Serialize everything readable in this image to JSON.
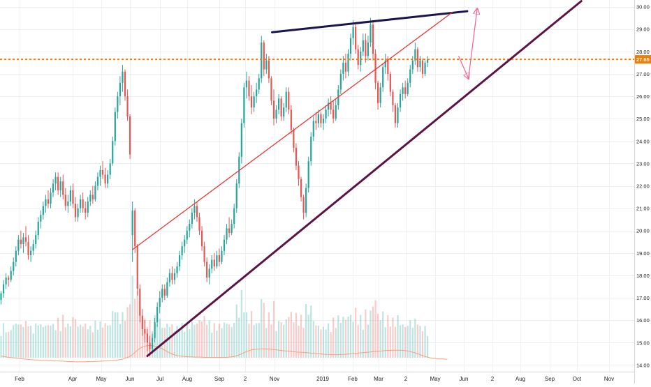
{
  "chart_data": {
    "type": "candlestick",
    "price_axis": {
      "ticks": [
        14,
        15,
        16,
        17,
        18,
        19,
        20,
        21,
        22,
        23,
        24,
        25,
        26,
        27,
        28,
        29,
        30
      ],
      "ylim": [
        13.7,
        30.3
      ],
      "grid": true
    },
    "time_axis": {
      "labels": [
        "Feb",
        "Apr",
        "May",
        "Jun",
        "Jul",
        "Aug",
        "Sep",
        "2",
        "Nov",
        "2019",
        "Feb",
        "Mar",
        "2",
        "May",
        "Jun",
        "2",
        "Aug",
        "Sep",
        "Oct",
        "Nov"
      ],
      "grid": true
    },
    "current_price": {
      "value": 27.65,
      "label": "27.65",
      "color": "#f57c00"
    },
    "colors": {
      "up": "#26a69a",
      "down": "#ef5350",
      "volume_ma": "#f5a27a"
    },
    "candles": [
      [
        16.9,
        17.3,
        16.7,
        17.2
      ],
      [
        17.2,
        17.8,
        17.0,
        17.6
      ],
      [
        17.6,
        18.1,
        17.4,
        17.9
      ],
      [
        17.9,
        18.0,
        17.5,
        17.8
      ],
      [
        17.8,
        18.4,
        17.7,
        18.2
      ],
      [
        18.2,
        18.8,
        18.0,
        18.6
      ],
      [
        18.6,
        19.3,
        18.4,
        19.1
      ],
      [
        19.1,
        19.8,
        18.9,
        19.6
      ],
      [
        19.6,
        20.0,
        19.2,
        19.4
      ],
      [
        19.4,
        19.9,
        19.0,
        19.7
      ],
      [
        19.7,
        20.2,
        19.3,
        19.5
      ],
      [
        19.5,
        19.8,
        18.7,
        18.9
      ],
      [
        18.9,
        19.3,
        18.6,
        19.1
      ],
      [
        19.1,
        19.6,
        18.9,
        19.4
      ],
      [
        19.4,
        20.0,
        19.2,
        19.8
      ],
      [
        19.8,
        20.6,
        19.6,
        20.4
      ],
      [
        20.4,
        20.9,
        20.1,
        20.7
      ],
      [
        20.7,
        21.3,
        20.5,
        21.1
      ],
      [
        21.1,
        21.6,
        20.8,
        21.4
      ],
      [
        21.4,
        21.8,
        21.0,
        21.2
      ],
      [
        21.2,
        21.9,
        21.0,
        21.7
      ],
      [
        21.7,
        22.3,
        21.5,
        22.1
      ],
      [
        22.1,
        22.6,
        21.8,
        22.4
      ],
      [
        22.4,
        22.6,
        21.6,
        21.8
      ],
      [
        21.8,
        22.4,
        21.5,
        22.2
      ],
      [
        22.2,
        22.5,
        21.4,
        21.6
      ],
      [
        21.6,
        21.9,
        20.9,
        21.1
      ],
      [
        21.1,
        21.6,
        20.8,
        21.3
      ],
      [
        21.3,
        22.0,
        21.1,
        21.8
      ],
      [
        21.8,
        22.1,
        21.0,
        21.2
      ],
      [
        21.2,
        21.5,
        20.4,
        20.6
      ],
      [
        20.6,
        21.2,
        20.4,
        21.0
      ],
      [
        21.0,
        21.6,
        20.8,
        21.4
      ],
      [
        21.4,
        21.7,
        20.8,
        21.0
      ],
      [
        21.0,
        21.3,
        20.5,
        20.8
      ],
      [
        20.8,
        21.5,
        20.6,
        21.3
      ],
      [
        21.3,
        21.8,
        21.1,
        21.6
      ],
      [
        21.6,
        22.0,
        21.2,
        21.4
      ],
      [
        21.4,
        22.2,
        21.3,
        22.0
      ],
      [
        22.0,
        22.6,
        21.8,
        22.4
      ],
      [
        22.4,
        22.9,
        22.0,
        22.7
      ],
      [
        22.7,
        23.1,
        22.3,
        22.5
      ],
      [
        22.5,
        22.8,
        21.9,
        22.1
      ],
      [
        22.1,
        22.7,
        21.9,
        22.5
      ],
      [
        22.5,
        23.2,
        22.3,
        23.0
      ],
      [
        23.0,
        24.2,
        22.9,
        24.0
      ],
      [
        24.0,
        25.5,
        23.8,
        25.3
      ],
      [
        25.3,
        26.2,
        25.0,
        26.0
      ],
      [
        26.0,
        26.9,
        25.6,
        26.6
      ],
      [
        26.6,
        27.4,
        26.2,
        27.1
      ],
      [
        27.1,
        27.2,
        25.8,
        26.0
      ],
      [
        26.0,
        26.3,
        24.9,
        25.1
      ],
      [
        25.1,
        25.2,
        23.2,
        23.4
      ],
      [
        19.8,
        21.3,
        18.6,
        20.9
      ],
      [
        20.9,
        21.0,
        19.0,
        19.3
      ],
      [
        19.3,
        19.4,
        17.1,
        17.4
      ],
      [
        17.4,
        17.6,
        15.9,
        16.2
      ],
      [
        16.2,
        16.5,
        15.3,
        15.6
      ],
      [
        15.6,
        16.0,
        15.0,
        15.4
      ],
      [
        15.4,
        15.6,
        14.6,
        15.0
      ],
      [
        15.0,
        15.3,
        14.4,
        14.7
      ],
      [
        14.7,
        15.4,
        14.5,
        15.2
      ],
      [
        15.2,
        16.1,
        15.0,
        15.9
      ],
      [
        15.9,
        16.8,
        15.7,
        16.6
      ],
      [
        16.6,
        17.3,
        16.3,
        17.0
      ],
      [
        17.0,
        17.6,
        16.8,
        17.4
      ],
      [
        17.4,
        17.6,
        16.9,
        17.1
      ],
      [
        17.1,
        17.9,
        17.0,
        17.7
      ],
      [
        17.7,
        18.3,
        17.5,
        18.1
      ],
      [
        18.1,
        18.4,
        17.6,
        17.8
      ],
      [
        17.8,
        18.3,
        17.6,
        18.1
      ],
      [
        18.1,
        18.6,
        17.9,
        18.4
      ],
      [
        18.4,
        19.1,
        18.2,
        18.9
      ],
      [
        18.9,
        19.5,
        18.7,
        19.3
      ],
      [
        19.3,
        19.8,
        19.0,
        19.6
      ],
      [
        19.6,
        20.2,
        19.4,
        20.0
      ],
      [
        20.0,
        20.5,
        19.7,
        20.3
      ],
      [
        20.3,
        21.0,
        20.1,
        20.8
      ],
      [
        20.8,
        21.4,
        20.5,
        21.1
      ],
      [
        21.1,
        21.3,
        20.4,
        20.6
      ],
      [
        20.6,
        20.8,
        19.8,
        20.0
      ],
      [
        20.0,
        20.2,
        19.1,
        19.3
      ],
      [
        19.3,
        19.5,
        18.4,
        18.6
      ],
      [
        18.6,
        18.8,
        17.7,
        17.9
      ],
      [
        17.9,
        18.5,
        17.6,
        18.3
      ],
      [
        18.3,
        18.9,
        18.1,
        18.7
      ],
      [
        18.7,
        19.0,
        18.2,
        18.4
      ],
      [
        18.4,
        19.1,
        18.3,
        18.9
      ],
      [
        18.9,
        19.2,
        18.4,
        18.6
      ],
      [
        18.6,
        19.3,
        18.5,
        19.1
      ],
      [
        19.1,
        19.8,
        18.9,
        19.6
      ],
      [
        19.6,
        20.3,
        19.4,
        20.1
      ],
      [
        20.1,
        20.6,
        19.7,
        19.9
      ],
      [
        19.9,
        20.5,
        19.8,
        20.3
      ],
      [
        20.3,
        21.2,
        20.1,
        21.0
      ],
      [
        21.0,
        22.3,
        20.8,
        22.1
      ],
      [
        22.1,
        23.5,
        21.9,
        23.3
      ],
      [
        23.3,
        25.0,
        23.0,
        24.8
      ],
      [
        24.8,
        26.6,
        24.6,
        26.4
      ],
      [
        26.4,
        27.1,
        25.9,
        26.7
      ],
      [
        26.7,
        26.9,
        25.8,
        26.0
      ],
      [
        26.0,
        26.5,
        25.2,
        25.5
      ],
      [
        25.5,
        26.2,
        25.3,
        26.0
      ],
      [
        26.0,
        26.6,
        25.7,
        26.3
      ],
      [
        26.3,
        27.0,
        26.1,
        26.8
      ],
      [
        26.8,
        28.7,
        26.6,
        28.4
      ],
      [
        28.4,
        28.5,
        26.9,
        27.2
      ],
      [
        27.2,
        27.9,
        27.0,
        27.6
      ],
      [
        27.6,
        27.8,
        26.6,
        26.8
      ],
      [
        26.8,
        26.9,
        25.6,
        25.8
      ],
      [
        25.8,
        26.3,
        24.7,
        25.0
      ],
      [
        25.0,
        25.6,
        24.8,
        25.4
      ],
      [
        25.4,
        26.1,
        25.2,
        25.9
      ],
      [
        25.9,
        26.0,
        24.9,
        25.1
      ],
      [
        25.1,
        25.7,
        24.9,
        25.5
      ],
      [
        25.5,
        26.4,
        25.3,
        26.2
      ],
      [
        26.2,
        26.4,
        25.2,
        25.4
      ],
      [
        25.4,
        25.6,
        24.3,
        24.5
      ],
      [
        24.5,
        24.6,
        23.5,
        23.7
      ],
      [
        23.7,
        23.9,
        22.7,
        22.9
      ],
      [
        22.9,
        23.1,
        22.0,
        22.3
      ],
      [
        22.3,
        22.4,
        21.3,
        21.5
      ],
      [
        21.5,
        21.6,
        20.5,
        20.8
      ],
      [
        20.8,
        22.1,
        20.6,
        21.9
      ],
      [
        21.9,
        23.3,
        21.7,
        23.1
      ],
      [
        23.1,
        24.4,
        22.9,
        24.2
      ],
      [
        24.2,
        25.1,
        24.0,
        24.9
      ],
      [
        24.9,
        25.3,
        24.5,
        24.8
      ],
      [
        24.8,
        25.4,
        24.6,
        25.2
      ],
      [
        25.2,
        25.3,
        24.6,
        24.8
      ],
      [
        24.8,
        25.2,
        24.5,
        25.0
      ],
      [
        25.0,
        25.6,
        24.8,
        25.4
      ],
      [
        25.4,
        25.9,
        25.1,
        25.7
      ],
      [
        25.7,
        26.0,
        25.2,
        25.4
      ],
      [
        25.4,
        25.8,
        24.8,
        25.0
      ],
      [
        25.0,
        25.9,
        24.9,
        25.6
      ],
      [
        25.6,
        26.5,
        25.4,
        26.3
      ],
      [
        26.3,
        27.2,
        26.1,
        27.0
      ],
      [
        27.0,
        27.8,
        26.7,
        27.5
      ],
      [
        27.5,
        27.9,
        26.8,
        27.1
      ],
      [
        27.1,
        28.1,
        26.9,
        27.9
      ],
      [
        27.9,
        28.8,
        27.6,
        28.6
      ],
      [
        28.6,
        29.4,
        28.3,
        29.1
      ],
      [
        29.1,
        29.3,
        27.9,
        28.1
      ],
      [
        28.1,
        28.3,
        27.2,
        27.4
      ],
      [
        27.4,
        28.2,
        27.1,
        28.0
      ],
      [
        28.0,
        28.8,
        27.8,
        28.5
      ],
      [
        28.5,
        28.8,
        27.5,
        27.8
      ],
      [
        27.8,
        28.7,
        27.6,
        28.4
      ],
      [
        28.4,
        29.5,
        28.2,
        29.2
      ],
      [
        29.2,
        29.4,
        27.6,
        27.9
      ],
      [
        27.9,
        28.1,
        26.3,
        26.6
      ],
      [
        26.6,
        26.7,
        25.4,
        25.7
      ],
      [
        25.7,
        26.6,
        25.5,
        26.4
      ],
      [
        26.4,
        27.5,
        26.2,
        27.3
      ],
      [
        27.3,
        27.9,
        27.0,
        27.6
      ],
      [
        27.6,
        27.8,
        26.7,
        27.0
      ],
      [
        27.0,
        27.1,
        26.0,
        26.2
      ],
      [
        26.2,
        26.3,
        25.3,
        25.6
      ],
      [
        25.6,
        25.7,
        24.6,
        24.8
      ],
      [
        24.8,
        25.7,
        24.6,
        25.5
      ],
      [
        25.5,
        26.3,
        25.3,
        26.1
      ],
      [
        26.1,
        26.6,
        25.8,
        26.4
      ],
      [
        26.4,
        26.7,
        25.9,
        26.1
      ],
      [
        26.1,
        26.8,
        26.0,
        26.6
      ],
      [
        26.6,
        27.4,
        26.4,
        27.2
      ],
      [
        27.2,
        27.8,
        27.0,
        27.6
      ],
      [
        27.6,
        28.4,
        27.4,
        28.1
      ],
      [
        28.1,
        28.2,
        27.1,
        27.3
      ],
      [
        27.3,
        27.8,
        27.1,
        27.6
      ],
      [
        27.6,
        27.7,
        26.8,
        27.0
      ],
      [
        27.0,
        27.6,
        26.9,
        27.5
      ],
      [
        27.5,
        27.8,
        27.3,
        27.65
      ]
    ],
    "volume_ma": [
      14.4,
      14.38,
      14.36,
      14.34,
      14.33,
      14.32,
      14.3,
      14.29,
      14.28,
      14.27,
      14.26,
      14.25,
      14.24,
      14.23,
      14.22,
      14.22,
      14.21,
      14.2,
      14.2,
      14.19,
      14.19,
      14.18,
      14.18,
      14.18,
      14.17,
      14.17,
      14.16,
      14.16,
      14.15,
      14.15,
      14.14,
      14.14,
      14.14,
      14.14,
      14.14,
      14.15,
      14.15,
      14.15,
      14.16,
      14.16,
      14.17,
      14.17,
      14.18,
      14.18,
      14.19,
      14.19,
      14.21,
      14.22,
      14.24,
      14.26,
      14.3,
      14.34,
      14.38,
      14.46,
      14.56,
      14.66,
      14.74,
      14.8,
      14.84,
      14.86,
      14.87,
      14.86,
      14.84,
      14.81,
      14.77,
      14.72,
      14.66,
      14.6,
      14.54,
      14.49,
      14.45,
      14.42,
      14.4,
      14.39,
      14.38,
      14.37,
      14.36,
      14.36,
      14.35,
      14.35,
      14.35,
      14.35,
      14.34,
      14.34,
      14.34,
      14.34,
      14.34,
      14.34,
      14.34,
      14.34,
      14.34,
      14.34,
      14.35,
      14.36,
      14.38,
      14.41,
      14.45,
      14.5,
      14.55,
      14.6,
      14.64,
      14.67,
      14.69,
      14.7,
      14.71,
      14.72,
      14.72,
      14.72,
      14.71,
      14.7,
      14.69,
      14.68,
      14.66,
      14.65,
      14.63,
      14.62,
      14.61,
      14.6,
      14.59,
      14.58,
      14.57,
      14.57,
      14.56,
      14.55,
      14.54,
      14.53,
      14.52,
      14.51,
      14.5,
      14.49,
      14.48,
      14.47,
      14.47,
      14.46,
      14.46,
      14.46,
      14.46,
      14.47,
      14.47,
      14.48,
      14.49,
      14.5,
      14.51,
      14.52,
      14.53,
      14.54,
      14.55,
      14.56,
      14.57,
      14.58,
      14.59,
      14.6,
      14.61,
      14.62,
      14.63,
      14.64,
      14.65,
      14.65,
      14.66,
      14.66,
      14.66,
      14.66,
      14.65,
      14.64,
      14.62,
      14.6,
      14.57,
      14.54,
      14.5,
      14.46,
      14.42,
      14.38,
      14.35,
      14.32,
      14.3,
      14.29,
      14.28,
      14.27,
      14.27,
      14.26,
      14.26
    ],
    "annotations": [
      {
        "kind": "trendline",
        "color": "#1a1550",
        "from": [
          109.3,
          28.86
        ],
        "to": [
          188.0,
          29.8
        ]
      },
      {
        "kind": "trendline",
        "color": "#e53935",
        "from": [
          53.0,
          19.15
        ],
        "to": [
          182.0,
          29.75
        ]
      },
      {
        "kind": "trendline",
        "color": "#5c1446",
        "from": [
          59.0,
          14.4
        ],
        "to": [
          234.0,
          30.25
        ]
      },
      {
        "kind": "arrow",
        "color": "#f06292",
        "points": [
          [
            184.5,
            27.8
          ],
          [
            188.5,
            26.8
          ],
          [
            192.0,
            29.9
          ]
        ]
      }
    ]
  }
}
